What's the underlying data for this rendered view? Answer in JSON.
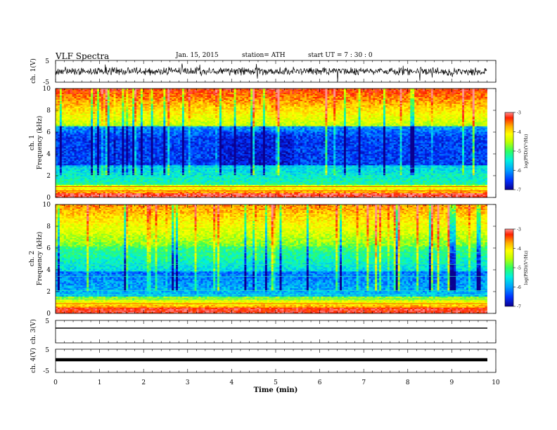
{
  "header": {
    "title": "VLF Spectra",
    "date": "Jan. 15, 2015",
    "station": "station= ATH",
    "start": "start  UT =  7 : 30 : 0"
  },
  "colors": {
    "colormap": [
      "#0b0090",
      "#0030ff",
      "#00a0ff",
      "#00f0e0",
      "#30ff60",
      "#c0ff00",
      "#ffff00",
      "#ffb000",
      "#ff2000",
      "#ff9090"
    ],
    "trace": "#000000"
  },
  "chart_data": [
    {
      "type": "line",
      "id": "ch1",
      "ylabel": "ch. 1(V)",
      "ylim": [
        -5,
        5
      ],
      "yticks": [
        "5",
        "-5"
      ],
      "signal": "noisy voltage fluctuating around 0 V, roughly -2 to +2 V with spikes"
    },
    {
      "type": "heatmap",
      "id": "spec1",
      "ylabel_top": "ch. 1",
      "ylabel": "Frequency (kHz)",
      "ylim": [
        0,
        10
      ],
      "yticks": [
        "0",
        "2",
        "4",
        "6",
        "8",
        "10"
      ],
      "colorbar": {
        "label": "log(PSD)(V²/Hz)",
        "range": [
          -7,
          -3
        ],
        "ticks": [
          "-3",
          "-4",
          "-5",
          "-6",
          "-7"
        ]
      }
    },
    {
      "type": "heatmap",
      "id": "spec2",
      "ylabel_top": "ch. 2",
      "ylabel": "Frequency (kHz)",
      "ylim": [
        0,
        10
      ],
      "yticks": [
        "0",
        "2",
        "4",
        "6",
        "8",
        "10"
      ],
      "colorbar": {
        "label": "log(PSD)(V²/Hz)",
        "range": [
          -7,
          -3
        ],
        "ticks": [
          "-3",
          "-4",
          "-5",
          "-6",
          "-7"
        ]
      }
    },
    {
      "type": "line",
      "id": "ch3",
      "ylabel": "ch. 3(V)",
      "ylim": [
        -5,
        5
      ],
      "yticks": [
        "5"
      ],
      "signal": "flat trace near +1 V"
    },
    {
      "type": "line",
      "id": "ch4",
      "ylabel": "ch. 4(V)",
      "ylim": [
        -5,
        5
      ],
      "yticks": [
        "5",
        "-5"
      ],
      "signal": "thick flat trace near 0 V"
    }
  ],
  "xaxis": {
    "label": "Time (min)",
    "xlim": [
      0,
      10
    ],
    "ticks": [
      "0",
      "1",
      "2",
      "3",
      "4",
      "5",
      "6",
      "7",
      "8",
      "9",
      "10"
    ],
    "data_end": 9.8
  }
}
